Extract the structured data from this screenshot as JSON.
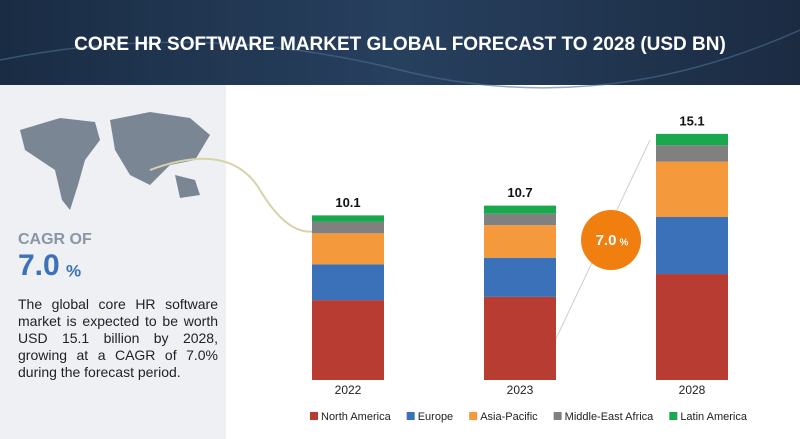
{
  "chart_data": {
    "type": "stacked-bar",
    "title": "CORE HR SOFTWARE MARKET GLOBAL FORECAST TO 2028 (USD BN)",
    "categories": [
      "2022",
      "2023",
      "2028"
    ],
    "series": [
      {
        "name": "North America",
        "color": "#b83c32",
        "values": [
          4.9,
          5.1,
          6.5
        ]
      },
      {
        "name": "Europe",
        "color": "#3a71b8",
        "values": [
          2.2,
          2.4,
          3.5
        ]
      },
      {
        "name": "Asia-Pacific",
        "color": "#f49a3c",
        "values": [
          1.9,
          2.0,
          3.4
        ]
      },
      {
        "name": "Middle-East Africa",
        "color": "#808080",
        "values": [
          0.7,
          0.7,
          1.0
        ]
      },
      {
        "name": "Latin America",
        "color": "#1aa84f",
        "values": [
          0.4,
          0.5,
          0.7
        ]
      }
    ],
    "totals": [
      10.1,
      10.7,
      15.1
    ],
    "cagr_badge": {
      "value": "7.0",
      "unit": "%"
    },
    "cagr_panel": {
      "label": "CAGR OF",
      "value": "7.0",
      "unit": "%"
    },
    "description": "The global core HR software market is expected to be worth USD 15.1 billion by 2028, growing at a CAGR of 7.0% during the forecast period."
  }
}
